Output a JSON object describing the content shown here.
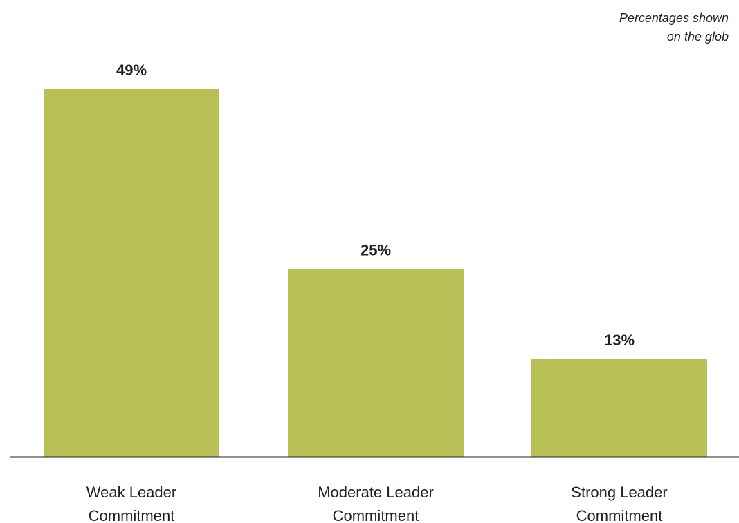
{
  "note": {
    "line1": "Percentages shown",
    "line2": "on the glob"
  },
  "colors": {
    "bar": "#b8bf55",
    "axis": "#231f20",
    "text": "#231f20"
  },
  "chart_data": {
    "type": "bar",
    "categories": [
      [
        "Weak Leader",
        "Commitment"
      ],
      [
        "Moderate Leader",
        "Commitment"
      ],
      [
        "Strong Leader",
        "Commitment"
      ]
    ],
    "values": [
      49,
      25,
      13
    ],
    "value_labels": [
      "49%",
      "25%",
      "13%"
    ],
    "title": "",
    "xlabel": "",
    "ylabel": "",
    "ylim": [
      0,
      49
    ],
    "grid": false,
    "legend": "none"
  }
}
